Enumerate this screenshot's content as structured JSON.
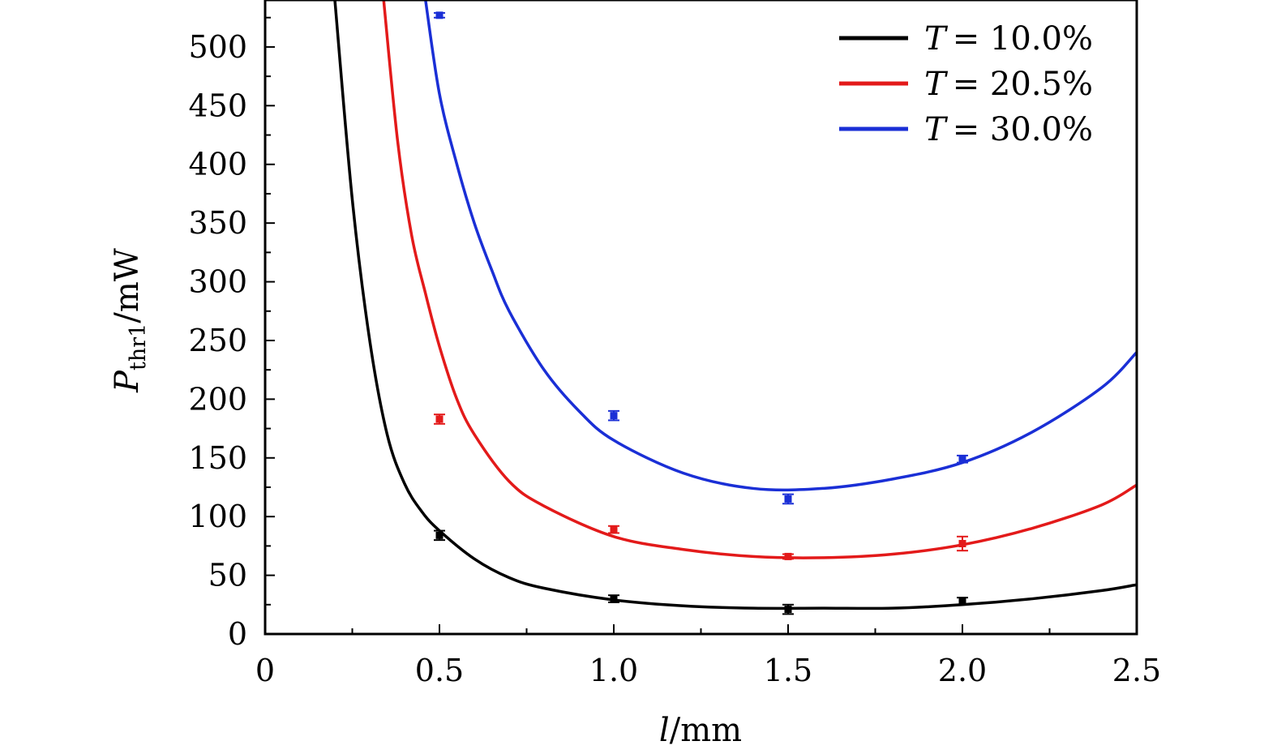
{
  "chart_data": {
    "type": "line",
    "xlabel_var": "l",
    "xlabel_unit": "/mm",
    "ylabel_var": "P",
    "ylabel_sub": "thr1",
    "ylabel_unit": "/mW",
    "xlim": [
      0,
      2.5
    ],
    "ylim": [
      0,
      540
    ],
    "x_ticks": [
      0,
      0.5,
      1.0,
      1.5,
      2.0,
      2.5
    ],
    "x_tick_labels": [
      "0",
      "0.5",
      "1.0",
      "1.5",
      "2.0",
      "2.5"
    ],
    "y_ticks": [
      0,
      50,
      100,
      150,
      200,
      250,
      300,
      350,
      400,
      450,
      500
    ],
    "y_tick_labels": [
      "0",
      "50",
      "100",
      "150",
      "200",
      "250",
      "300",
      "350",
      "400",
      "450",
      "500"
    ],
    "legend_position": "top-right",
    "grid": false,
    "series": [
      {
        "name": "T = 10.0%",
        "legend_var": "T",
        "legend_value": "= 10.0%",
        "color": "#000000",
        "fit_x": [
          0.2,
          0.25,
          0.3,
          0.35,
          0.4,
          0.45,
          0.5,
          0.6,
          0.7,
          0.8,
          1.0,
          1.2,
          1.4,
          1.6,
          1.8,
          2.0,
          2.2,
          2.4,
          2.5
        ],
        "fit_y": [
          540,
          370,
          250,
          170,
          128,
          104,
          88,
          64,
          48,
          39,
          29,
          24,
          22,
          22,
          22,
          25,
          30,
          37,
          42
        ],
        "points_x": [
          0.5,
          1.0,
          1.5,
          2.0
        ],
        "points_y": [
          84,
          30,
          21,
          28
        ],
        "errors": [
          4,
          3,
          4,
          3
        ]
      },
      {
        "name": "T = 20.5%",
        "legend_var": "T",
        "legend_value": "= 20.5%",
        "color": "#e31a1a",
        "fit_x": [
          0.34,
          0.38,
          0.42,
          0.46,
          0.5,
          0.55,
          0.6,
          0.7,
          0.8,
          1.0,
          1.2,
          1.4,
          1.6,
          1.8,
          2.0,
          2.2,
          2.4,
          2.5
        ],
        "fit_y": [
          540,
          420,
          340,
          290,
          245,
          200,
          170,
          130,
          109,
          83,
          72,
          66,
          65,
          68,
          76,
          90,
          110,
          127
        ],
        "points_x": [
          0.5,
          1.0,
          1.5,
          2.0
        ],
        "points_y": [
          183,
          89,
          66,
          77
        ],
        "errors": [
          4,
          3,
          2,
          6
        ]
      },
      {
        "name": "T = 30.0%",
        "legend_var": "T",
        "legend_value": "= 30.0%",
        "color": "#1a2fd6",
        "fit_x": [
          0.46,
          0.5,
          0.55,
          0.6,
          0.65,
          0.7,
          0.8,
          0.9,
          1.0,
          1.2,
          1.4,
          1.6,
          1.8,
          2.0,
          2.2,
          2.4,
          2.5
        ],
        "fit_y": [
          540,
          460,
          400,
          350,
          310,
          275,
          225,
          190,
          165,
          137,
          124,
          124,
          132,
          146,
          172,
          210,
          240
        ],
        "points_x": [
          0.5,
          1.0,
          1.5,
          2.0
        ],
        "points_y": [
          527,
          186,
          115,
          149
        ],
        "errors": [
          2,
          4,
          4,
          3
        ]
      }
    ]
  }
}
